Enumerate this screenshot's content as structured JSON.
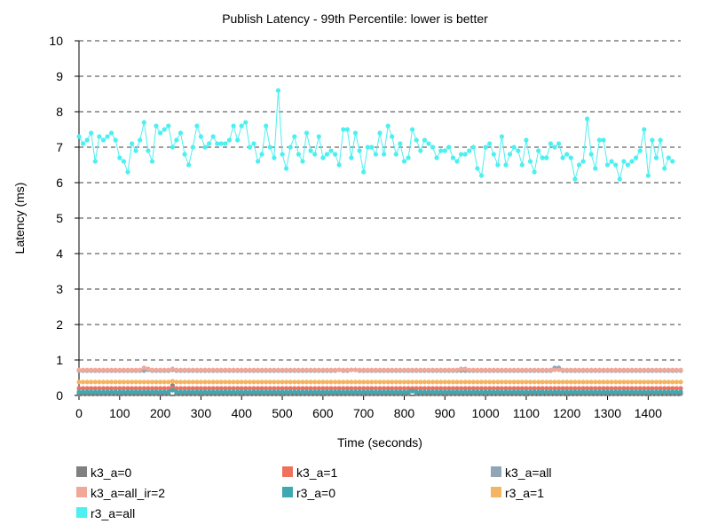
{
  "chart_data": {
    "type": "line",
    "title": "Publish Latency - 99th Percentile: lower is better",
    "xlabel": "Time (seconds)",
    "ylabel": "Latency (ms)",
    "xlim": [
      0,
      1480
    ],
    "ylim": [
      0,
      10
    ],
    "x_ticks": [
      0,
      100,
      200,
      300,
      400,
      500,
      600,
      700,
      800,
      900,
      1000,
      1100,
      1200,
      1300,
      1400
    ],
    "y_ticks": [
      0,
      1,
      2,
      3,
      4,
      5,
      6,
      7,
      8,
      9,
      10
    ],
    "grid": "horizontal dashed",
    "legend_position": "bottom",
    "x_step": 10,
    "series": [
      {
        "name": "k3_a=0",
        "color": "#808080",
        "values": [
          0.05,
          0.05,
          0.05,
          0.05,
          0.05,
          0.05,
          0.05,
          0.05,
          0.05,
          0.05,
          0.05,
          0.05,
          0.05,
          0.05,
          0.05,
          0.05,
          0.05,
          0.05,
          0.05,
          0.05,
          0.05,
          0.05,
          0.05,
          0.28,
          0.05,
          0.05,
          0.05,
          0.05,
          0.05,
          0.05,
          0.05,
          0.05,
          0.05,
          0.05,
          0.05,
          0.05,
          0.05,
          0.05,
          0.05,
          0.05,
          0.05,
          0.05,
          0.05,
          0.05,
          0.05,
          0.05,
          0.05,
          0.05,
          0.05,
          0.05,
          0.05,
          0.05,
          0.05,
          0.05,
          0.05,
          0.05,
          0.05,
          0.05,
          0.05,
          0.05,
          0.05,
          0.05,
          0.05,
          0.05,
          0.05,
          0.05,
          0.05,
          0.05,
          0.05,
          0.05,
          0.05,
          0.05,
          0.05,
          0.05,
          0.05,
          0.05,
          0.05,
          0.05,
          0.05,
          0.05,
          0.05,
          0.05,
          0.15,
          0.05,
          0.05,
          0.05,
          0.05,
          0.05,
          0.05,
          0.05,
          0.05,
          0.05,
          0.05,
          0.05,
          0.05,
          0.05,
          0.05,
          0.05,
          0.05,
          0.05,
          0.05,
          0.05,
          0.05,
          0.05,
          0.05,
          0.05,
          0.05,
          0.05,
          0.05,
          0.05,
          0.05,
          0.05,
          0.05,
          0.05,
          0.05,
          0.05,
          0.05,
          0.05,
          0.05,
          0.05,
          0.05,
          0.05,
          0.05,
          0.05,
          0.05,
          0.05,
          0.05,
          0.05,
          0.05,
          0.05,
          0.05,
          0.05,
          0.05,
          0.05,
          0.05,
          0.05,
          0.05,
          0.05,
          0.05,
          0.05,
          0.05,
          0.05,
          0.05,
          0.05,
          0.05,
          0.05,
          0.05,
          0.05,
          0.05
        ]
      },
      {
        "name": "k3_a=1",
        "color": "#f07060",
        "values": [
          0.2,
          0.2,
          0.2,
          0.2,
          0.2,
          0.2,
          0.2,
          0.2,
          0.2,
          0.2,
          0.2,
          0.2,
          0.2,
          0.2,
          0.2,
          0.2,
          0.2,
          0.2,
          0.2,
          0.2,
          0.2,
          0.2,
          0.2,
          0.22,
          0.2,
          0.2,
          0.2,
          0.2,
          0.2,
          0.2,
          0.2,
          0.2,
          0.2,
          0.2,
          0.2,
          0.2,
          0.2,
          0.2,
          0.2,
          0.2,
          0.2,
          0.2,
          0.2,
          0.2,
          0.2,
          0.2,
          0.2,
          0.2,
          0.2,
          0.2,
          0.2,
          0.2,
          0.2,
          0.2,
          0.2,
          0.2,
          0.2,
          0.2,
          0.2,
          0.2,
          0.2,
          0.2,
          0.2,
          0.2,
          0.2,
          0.2,
          0.2,
          0.2,
          0.2,
          0.2,
          0.2,
          0.2,
          0.2,
          0.2,
          0.2,
          0.2,
          0.2,
          0.2,
          0.2,
          0.2,
          0.2,
          0.2,
          0.2,
          0.2,
          0.2,
          0.2,
          0.2,
          0.2,
          0.2,
          0.2,
          0.2,
          0.2,
          0.2,
          0.2,
          0.2,
          0.2,
          0.2,
          0.2,
          0.2,
          0.2,
          0.2,
          0.2,
          0.2,
          0.2,
          0.2,
          0.2,
          0.2,
          0.2,
          0.2,
          0.2,
          0.2,
          0.2,
          0.2,
          0.2,
          0.2,
          0.2,
          0.2,
          0.2,
          0.2,
          0.2,
          0.2,
          0.2,
          0.2,
          0.2,
          0.2,
          0.2,
          0.2,
          0.2,
          0.2,
          0.2,
          0.2,
          0.2,
          0.2,
          0.2,
          0.2,
          0.2,
          0.2,
          0.2,
          0.2,
          0.2,
          0.2,
          0.2,
          0.2,
          0.2,
          0.2,
          0.2,
          0.2,
          0.2,
          0.2
        ]
      },
      {
        "name": "k3_a=all",
        "color": "#8fa6b6",
        "values": [
          0.7,
          0.7,
          0.7,
          0.7,
          0.7,
          0.7,
          0.7,
          0.7,
          0.7,
          0.7,
          0.7,
          0.7,
          0.7,
          0.7,
          0.7,
          0.7,
          0.7,
          0.72,
          0.7,
          0.7,
          0.7,
          0.7,
          0.7,
          0.72,
          0.7,
          0.7,
          0.7,
          0.7,
          0.7,
          0.7,
          0.7,
          0.7,
          0.7,
          0.7,
          0.7,
          0.7,
          0.7,
          0.7,
          0.7,
          0.7,
          0.7,
          0.7,
          0.7,
          0.7,
          0.7,
          0.7,
          0.7,
          0.7,
          0.7,
          0.7,
          0.7,
          0.7,
          0.7,
          0.7,
          0.7,
          0.7,
          0.7,
          0.7,
          0.7,
          0.7,
          0.7,
          0.7,
          0.7,
          0.7,
          0.72,
          0.7,
          0.7,
          0.72,
          0.72,
          0.7,
          0.7,
          0.7,
          0.7,
          0.7,
          0.7,
          0.7,
          0.7,
          0.7,
          0.7,
          0.7,
          0.7,
          0.7,
          0.7,
          0.7,
          0.7,
          0.7,
          0.7,
          0.7,
          0.7,
          0.7,
          0.7,
          0.7,
          0.7,
          0.7,
          0.7,
          0.7,
          0.7,
          0.7,
          0.7,
          0.7,
          0.7,
          0.7,
          0.7,
          0.7,
          0.7,
          0.7,
          0.7,
          0.7,
          0.7,
          0.7,
          0.7,
          0.7,
          0.7,
          0.7,
          0.7,
          0.7,
          0.7,
          0.78,
          0.78,
          0.7,
          0.7,
          0.7,
          0.7,
          0.7,
          0.7,
          0.7,
          0.7,
          0.7,
          0.7,
          0.7,
          0.7,
          0.7,
          0.7,
          0.7,
          0.7,
          0.7,
          0.7,
          0.7,
          0.7,
          0.7,
          0.7,
          0.7,
          0.7,
          0.7,
          0.7,
          0.7,
          0.7,
          0.7,
          0.7
        ]
      },
      {
        "name": "k3_a=all_ir=2",
        "color": "#f2a898",
        "values": [
          0.72,
          0.72,
          0.72,
          0.72,
          0.72,
          0.72,
          0.72,
          0.72,
          0.72,
          0.72,
          0.72,
          0.72,
          0.72,
          0.72,
          0.72,
          0.72,
          0.78,
          0.75,
          0.72,
          0.72,
          0.72,
          0.72,
          0.72,
          0.75,
          0.72,
          0.72,
          0.72,
          0.72,
          0.72,
          0.72,
          0.72,
          0.72,
          0.72,
          0.72,
          0.72,
          0.72,
          0.72,
          0.72,
          0.72,
          0.72,
          0.72,
          0.72,
          0.72,
          0.72,
          0.72,
          0.72,
          0.72,
          0.72,
          0.72,
          0.72,
          0.72,
          0.72,
          0.72,
          0.72,
          0.72,
          0.72,
          0.72,
          0.72,
          0.72,
          0.72,
          0.72,
          0.72,
          0.72,
          0.72,
          0.72,
          0.72,
          0.72,
          0.72,
          0.72,
          0.72,
          0.72,
          0.72,
          0.72,
          0.72,
          0.72,
          0.72,
          0.72,
          0.72,
          0.72,
          0.72,
          0.72,
          0.72,
          0.72,
          0.72,
          0.72,
          0.72,
          0.72,
          0.72,
          0.72,
          0.72,
          0.72,
          0.72,
          0.72,
          0.72,
          0.75,
          0.75,
          0.72,
          0.72,
          0.72,
          0.72,
          0.72,
          0.72,
          0.72,
          0.72,
          0.72,
          0.72,
          0.72,
          0.72,
          0.72,
          0.72,
          0.72,
          0.72,
          0.72,
          0.72,
          0.72,
          0.72,
          0.72,
          0.72,
          0.72,
          0.72,
          0.72,
          0.72,
          0.72,
          0.72,
          0.72,
          0.72,
          0.72,
          0.72,
          0.72,
          0.72,
          0.72,
          0.72,
          0.72,
          0.72,
          0.72,
          0.72,
          0.72,
          0.72,
          0.72,
          0.72,
          0.72,
          0.72,
          0.72,
          0.72,
          0.72,
          0.72,
          0.72,
          0.72,
          0.72
        ]
      },
      {
        "name": "r3_a=0",
        "color": "#3fa9b1",
        "values": [
          0.1,
          0.1,
          0.1,
          0.1,
          0.1,
          0.1,
          0.1,
          0.1,
          0.1,
          0.1,
          0.1,
          0.1,
          0.1,
          0.1,
          0.1,
          0.1,
          0.1,
          0.1,
          0.1,
          0.1,
          0.1,
          0.1,
          0.1,
          0.15,
          0.1,
          0.1,
          0.1,
          0.1,
          0.1,
          0.1,
          0.1,
          0.1,
          0.1,
          0.1,
          0.1,
          0.1,
          0.1,
          0.1,
          0.1,
          0.1,
          0.1,
          0.1,
          0.1,
          0.1,
          0.1,
          0.1,
          0.1,
          0.1,
          0.1,
          0.1,
          0.1,
          0.1,
          0.1,
          0.1,
          0.1,
          0.1,
          0.1,
          0.1,
          0.1,
          0.1,
          0.1,
          0.1,
          0.1,
          0.1,
          0.1,
          0.1,
          0.1,
          0.1,
          0.1,
          0.1,
          0.1,
          0.1,
          0.1,
          0.1,
          0.1,
          0.1,
          0.1,
          0.1,
          0.1,
          0.1,
          0.1,
          0.1,
          0.12,
          0.1,
          0.1,
          0.1,
          0.1,
          0.1,
          0.1,
          0.1,
          0.1,
          0.1,
          0.1,
          0.1,
          0.1,
          0.1,
          0.1,
          0.1,
          0.1,
          0.1,
          0.1,
          0.1,
          0.1,
          0.1,
          0.1,
          0.1,
          0.1,
          0.1,
          0.1,
          0.1,
          0.1,
          0.1,
          0.1,
          0.1,
          0.1,
          0.1,
          0.1,
          0.1,
          0.1,
          0.1,
          0.1,
          0.1,
          0.1,
          0.1,
          0.1,
          0.1,
          0.1,
          0.1,
          0.1,
          0.1,
          0.1,
          0.1,
          0.1,
          0.1,
          0.1,
          0.1,
          0.1,
          0.1,
          0.1,
          0.1,
          0.1,
          0.1,
          0.1,
          0.1,
          0.1,
          0.1,
          0.1,
          0.1,
          0.1
        ]
      },
      {
        "name": "r3_a=1",
        "color": "#f5b461",
        "values": [
          0.38,
          0.38,
          0.38,
          0.38,
          0.38,
          0.38,
          0.38,
          0.38,
          0.38,
          0.38,
          0.38,
          0.38,
          0.38,
          0.38,
          0.38,
          0.38,
          0.38,
          0.38,
          0.38,
          0.38,
          0.38,
          0.38,
          0.38,
          0.4,
          0.38,
          0.38,
          0.38,
          0.38,
          0.38,
          0.38,
          0.38,
          0.38,
          0.38,
          0.38,
          0.38,
          0.38,
          0.38,
          0.38,
          0.38,
          0.38,
          0.38,
          0.38,
          0.38,
          0.38,
          0.38,
          0.38,
          0.38,
          0.38,
          0.38,
          0.38,
          0.38,
          0.38,
          0.38,
          0.38,
          0.38,
          0.38,
          0.38,
          0.38,
          0.38,
          0.38,
          0.38,
          0.38,
          0.38,
          0.38,
          0.38,
          0.38,
          0.38,
          0.38,
          0.38,
          0.38,
          0.38,
          0.38,
          0.38,
          0.38,
          0.38,
          0.38,
          0.38,
          0.38,
          0.38,
          0.38,
          0.38,
          0.38,
          0.38,
          0.38,
          0.38,
          0.38,
          0.38,
          0.38,
          0.38,
          0.38,
          0.38,
          0.38,
          0.38,
          0.38,
          0.38,
          0.38,
          0.38,
          0.38,
          0.38,
          0.38,
          0.38,
          0.38,
          0.38,
          0.38,
          0.38,
          0.38,
          0.38,
          0.38,
          0.38,
          0.38,
          0.38,
          0.38,
          0.38,
          0.38,
          0.38,
          0.38,
          0.38,
          0.38,
          0.38,
          0.38,
          0.38,
          0.38,
          0.38,
          0.38,
          0.38,
          0.38,
          0.38,
          0.38,
          0.38,
          0.38,
          0.38,
          0.38,
          0.38,
          0.38,
          0.38,
          0.38,
          0.38,
          0.38,
          0.38,
          0.38,
          0.38,
          0.38,
          0.38,
          0.38,
          0.38,
          0.38,
          0.38,
          0.38,
          0.38
        ]
      },
      {
        "name": "r3_a=all",
        "color": "#4cf0f0",
        "values": [
          7.3,
          7.1,
          7.2,
          7.4,
          6.6,
          7.3,
          7.2,
          7.3,
          7.4,
          7.2,
          6.7,
          6.6,
          6.3,
          7.1,
          6.9,
          7.2,
          7.7,
          6.9,
          6.6,
          7.6,
          7.4,
          7.5,
          7.6,
          7.0,
          7.2,
          7.4,
          6.8,
          6.5,
          7.0,
          7.6,
          7.3,
          7.0,
          7.1,
          7.3,
          7.1,
          7.1,
          7.1,
          7.2,
          7.6,
          7.2,
          7.6,
          7.7,
          7.0,
          7.1,
          6.6,
          6.8,
          7.6,
          7.0,
          6.7,
          8.6,
          6.8,
          6.4,
          7.0,
          7.3,
          6.8,
          6.6,
          7.4,
          6.9,
          6.8,
          7.3,
          6.7,
          6.8,
          6.9,
          6.8,
          6.5,
          7.5,
          7.5,
          6.7,
          7.4,
          6.9,
          6.3,
          7.0,
          7.0,
          6.8,
          7.4,
          6.8,
          7.6,
          7.3,
          6.8,
          7.1,
          6.6,
          6.7,
          7.5,
          7.2,
          6.9,
          7.2,
          7.1,
          7.0,
          6.7,
          6.9,
          6.9,
          7.0,
          6.7,
          6.6,
          6.8,
          6.8,
          6.9,
          7.0,
          6.4,
          6.2,
          7.0,
          7.1,
          6.8,
          6.5,
          7.3,
          6.5,
          6.8,
          7.0,
          6.9,
          6.5,
          7.2,
          6.6,
          6.3,
          6.9,
          6.7,
          6.7,
          7.1,
          7.0,
          7.1,
          6.7,
          6.8,
          6.7,
          6.1,
          6.5,
          6.6,
          7.8,
          6.8,
          6.4,
          7.2,
          7.2,
          6.5,
          6.6,
          6.5,
          6.1,
          6.6,
          6.5,
          6.6,
          6.7,
          6.9,
          7.5,
          6.2,
          7.2,
          6.7,
          7.2,
          6.4,
          6.7,
          6.6
        ]
      }
    ]
  }
}
